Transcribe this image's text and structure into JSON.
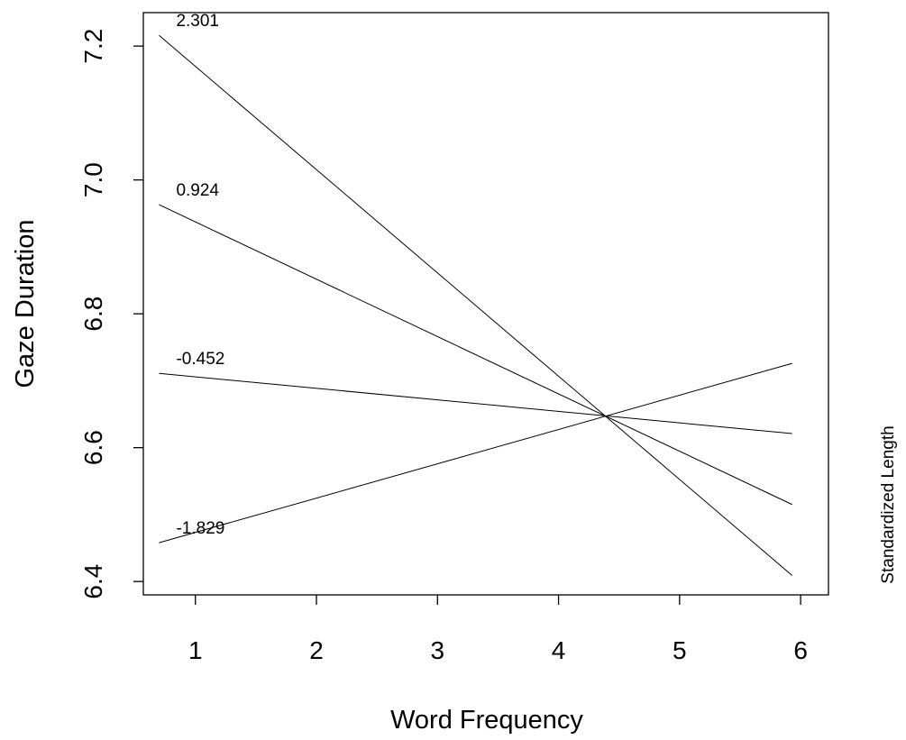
{
  "chart_data": {
    "type": "line",
    "title": "",
    "xlabel": "Word Frequency",
    "ylabel": "Gaze Duration",
    "legend_title": "Standardized Length",
    "xlim": [
      0.57,
      6.23
    ],
    "ylim": [
      6.38,
      7.25
    ],
    "x_ticks": [
      1,
      2,
      3,
      4,
      5,
      6
    ],
    "y_ticks": [
      6.4,
      6.6,
      6.8,
      7.0,
      7.2
    ],
    "x_tick_labels": [
      "1",
      "2",
      "3",
      "4",
      "5",
      "6"
    ],
    "y_tick_labels": [
      "6.4",
      "6.6",
      "6.8",
      "7.0",
      "7.2"
    ],
    "grid": false,
    "series": [
      {
        "label": "2.301",
        "x": [
          0.7,
          5.93
        ],
        "y": [
          7.216,
          6.409
        ]
      },
      {
        "label": "0.924",
        "x": [
          0.7,
          5.93
        ],
        "y": [
          6.963,
          6.515
        ]
      },
      {
        "label": "-0.452",
        "x": [
          0.7,
          5.93
        ],
        "y": [
          6.711,
          6.621
        ]
      },
      {
        "label": "-1.829",
        "x": [
          0.7,
          5.93
        ],
        "y": [
          6.458,
          6.726
        ]
      }
    ]
  }
}
